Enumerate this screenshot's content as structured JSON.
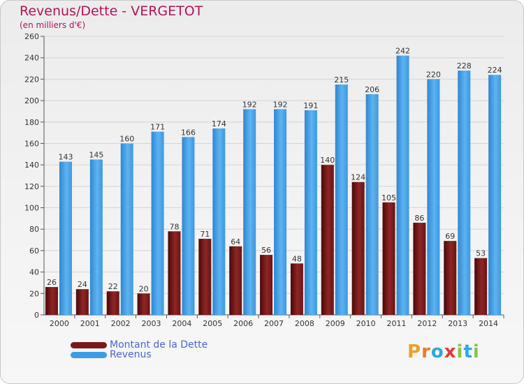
{
  "header": {
    "title": "Revenus/Dette - VERGETOT",
    "subtitle": "(en milliers d'€)"
  },
  "chart_data": {
    "type": "bar",
    "categories": [
      "2000",
      "2001",
      "2002",
      "2003",
      "2004",
      "2005",
      "2006",
      "2007",
      "2008",
      "2009",
      "2010",
      "2011",
      "2012",
      "2013",
      "2014"
    ],
    "series": [
      {
        "name": "Montant de la Dette",
        "color": "#7a1a1a",
        "values": [
          26,
          24,
          22,
          20,
          78,
          71,
          64,
          56,
          48,
          140,
          124,
          105,
          86,
          69,
          53
        ]
      },
      {
        "name": "Revenus",
        "color": "#3d9ce6",
        "values": [
          143,
          145,
          160,
          171,
          166,
          174,
          192,
          192,
          191,
          215,
          206,
          242,
          220,
          228,
          224
        ]
      }
    ],
    "ylim": [
      0,
      260
    ],
    "yticks": [
      0,
      20,
      40,
      60,
      80,
      100,
      120,
      140,
      160,
      180,
      200,
      220,
      240,
      260
    ],
    "grid": true,
    "legend_position": "bottom-left"
  },
  "legend": {
    "items": [
      {
        "label": "Montant de la Dette",
        "color": "#7a1a1a"
      },
      {
        "label": "Revenus",
        "color": "#3d9ce6"
      }
    ]
  },
  "brand": {
    "letters": [
      "P",
      "r",
      "o",
      "x",
      "i",
      "t",
      "i"
    ],
    "colors": [
      "#e8a12a",
      "#f07820",
      "#2aa8e0",
      "#e53935",
      "#8bc34a",
      "#2aa8e0",
      "#8bc34a"
    ]
  }
}
